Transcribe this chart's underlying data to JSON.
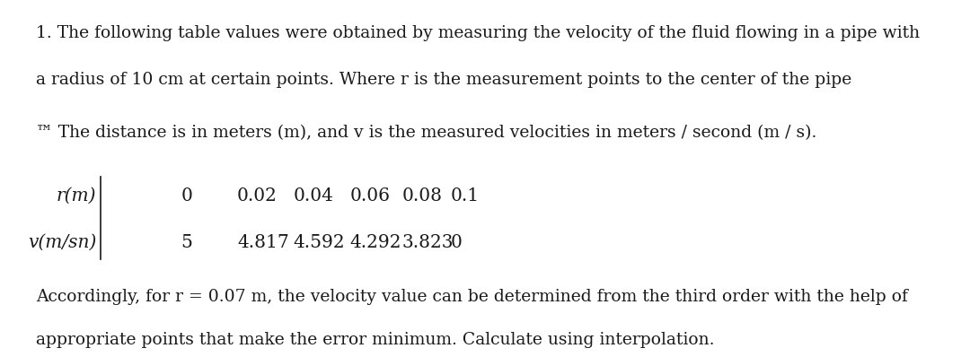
{
  "bg_color": "#ffffff",
  "text_color": "#1a1a1a",
  "font_family": "DejaVu Serif",
  "line1": "1. The following table values were obtained by measuring the velocity of the fluid flowing in a pipe with",
  "line2": "a radius of 10 cm at certain points. Where r is the measurement points to the center of the pipe",
  "line3": "™ The distance is in meters (m), and v is the measured velocities in meters / second (m / s).",
  "r_label": "r(m)",
  "r_values": [
    "0",
    "0.02",
    "0.04",
    "0.06",
    "0.08",
    "0.1"
  ],
  "v_label": "v(m/sn)",
  "v_values": [
    "5",
    "4.817",
    "4.592",
    "4.292",
    "3.823",
    "0"
  ],
  "bottom_line1": "Accordingly, for r = 0.07 m, the velocity value can be determined from the third order with the help of",
  "bottom_line2": "appropriate points that make the error minimum. Calculate using interpolation.",
  "font_size_main": 13.5,
  "font_size_table": 14.5,
  "font_size_bottom": 13.5
}
